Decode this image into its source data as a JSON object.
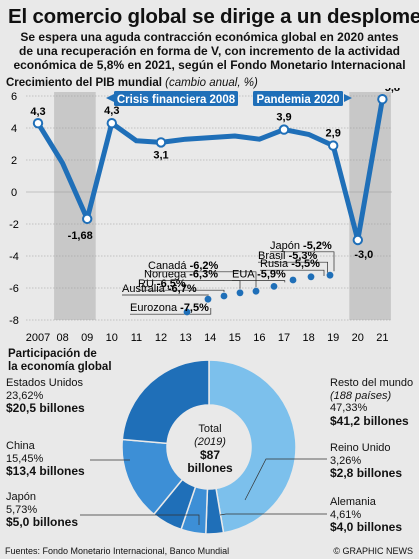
{
  "header": {
    "title": "El comercio global se dirige a un desplome",
    "subtitle_lines": [
      "Se espera una aguda contracción económica global en 2020 antes",
      "de una recuperación en forma de V, con incremento de la actividad",
      "económica de 5,8% en 2021, según el Fondo Monetario Internacional"
    ]
  },
  "line_section": {
    "label": "Crecimiento del PIB mundial",
    "label_unit": "(cambio anual, %)",
    "bands": [
      "Crisis financiera 2008",
      "Pandemia 2020"
    ]
  },
  "donut_section": {
    "label_line1": "Participación de",
    "label_line2": "la economía global",
    "center": {
      "line1": "Total",
      "line2": "(2019)",
      "line3": "$87",
      "line4": "billones"
    }
  },
  "footer": {
    "sources": "Fuentes: Fondo Monetario Internacional, Banco Mundial",
    "credit": "© GRAPHIC NEWS"
  },
  "colors": {
    "background": "#e9e9e9",
    "line_blue": "#1f6fb8",
    "band_gray": "#c8c8c8",
    "slice_dark": "#1f6fb8",
    "slice_light": "#7cc0ec"
  },
  "chart_data": [
    {
      "type": "line",
      "title": "Crecimiento del PIB mundial (cambio anual, %)",
      "x": [
        "2007",
        "08",
        "09",
        "10",
        "11",
        "12",
        "13",
        "14",
        "15",
        "16",
        "17",
        "18",
        "19",
        "20",
        "21"
      ],
      "ylim": [
        -8,
        6
      ],
      "yticks": [
        6,
        4,
        2,
        0,
        -2,
        -4,
        -6,
        -8
      ],
      "grid": true,
      "series": [
        {
          "values": [
            4.3,
            1.8,
            -1.68,
            4.3,
            3.2,
            3.1,
            3.3,
            3.4,
            3.5,
            3.3,
            3.9,
            3.6,
            2.9,
            -3.0,
            5.8
          ]
        }
      ],
      "point_labels": [
        {
          "x": "2007",
          "text": "4,3"
        },
        {
          "x": "09",
          "text": "-1,68"
        },
        {
          "x": "10",
          "text": "4,3"
        },
        {
          "x": "12",
          "text": "3,1"
        },
        {
          "x": "17",
          "text": "3,9"
        },
        {
          "x": "19",
          "text": "2,9"
        },
        {
          "x": "20",
          "text": "-3,0"
        },
        {
          "x": "21",
          "text": "5,8"
        }
      ],
      "shaded_periods": [
        {
          "label": "Crisis financiera 2008",
          "from": "08",
          "to": "09"
        },
        {
          "label": "Pandemia 2020",
          "from": "20",
          "to": "21"
        }
      ],
      "forecasts_2020": [
        {
          "name": "Eurozona",
          "value": -7.5,
          "text": "-7,5%"
        },
        {
          "name": "Australia",
          "value": -6.7,
          "text": "-6,7%"
        },
        {
          "name": "RU",
          "value": -6.5,
          "text": "-6,5%"
        },
        {
          "name": "Noruega",
          "value": -6.3,
          "text": "-6,3%"
        },
        {
          "name": "Canadá",
          "value": -6.2,
          "text": "-6,2%"
        },
        {
          "name": "EUA",
          "value": -5.9,
          "text": "-5,9%"
        },
        {
          "name": "Rusia",
          "value": -5.5,
          "text": "-5,5%"
        },
        {
          "name": "Brasil",
          "value": -5.3,
          "text": "-5,3%"
        },
        {
          "name": "Japón",
          "value": -5.2,
          "text": "-5,2%"
        }
      ]
    },
    {
      "type": "pie",
      "title": "Participación de la economía global",
      "total": "$87 billones",
      "slices": [
        {
          "name": "Resto del mundo",
          "note": "(188 países)",
          "percent": 47.33,
          "percent_text": "47,33%",
          "amount": "$41,2 billones",
          "color": "#7cc0ec"
        },
        {
          "name": "Reino Unido",
          "percent": 3.26,
          "percent_text": "3,26%",
          "amount": "$2,8 billones",
          "color": "#1f6fb8"
        },
        {
          "name": "Alemania",
          "percent": 4.61,
          "percent_text": "4,61%",
          "amount": "$4,0 billones",
          "color": "#3d8fd6"
        },
        {
          "name": "Japón",
          "percent": 5.73,
          "percent_text": "5,73%",
          "amount": "$5,0 billones",
          "color": "#1f6fb8"
        },
        {
          "name": "China",
          "percent": 15.45,
          "percent_text": "15,45%",
          "amount": "$13,4 billones",
          "color": "#3d8fd6"
        },
        {
          "name": "Estados Unidos",
          "percent": 23.62,
          "percent_text": "23,62%",
          "amount": "$20,5 billones",
          "color": "#1f6fb8"
        }
      ]
    }
  ]
}
